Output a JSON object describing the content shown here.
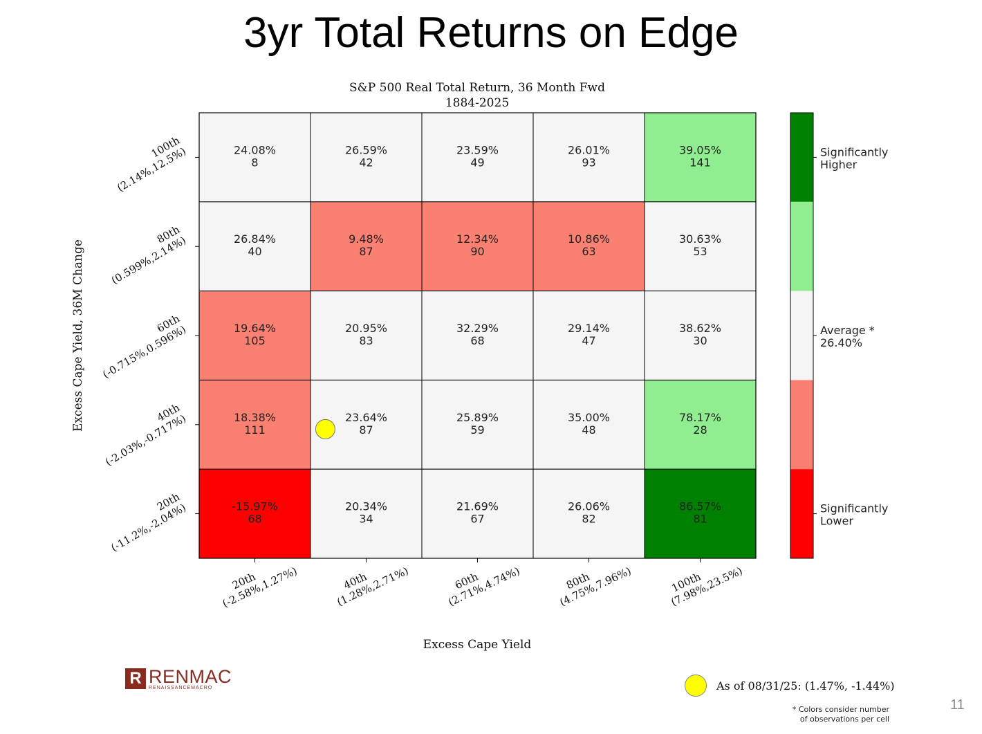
{
  "slide": {
    "title": "3yr Total Returns on Edge",
    "page_number": "11"
  },
  "colors": {
    "significantly_higher": "#008000",
    "higher": "#90ee90",
    "average": "#f5f5f5",
    "lower": "#fa8072",
    "significantly_lower": "#ff0000",
    "current_marker": "#ffff00"
  },
  "chart_data": {
    "type": "heatmap",
    "title": "S&P 500 Real Total Return, 36 Month Fwd",
    "subtitle": "1884-2025",
    "xlabel": "Excess Cape Yield",
    "ylabel": "Excess Cape Yield, 36M Change",
    "x_categories": [
      {
        "label": "20th",
        "range": "(-2.58%,1.27%)"
      },
      {
        "label": "40th",
        "range": "(1.28%,2.71%)"
      },
      {
        "label": "60th",
        "range": "(2.71%,4.74%)"
      },
      {
        "label": "80th",
        "range": "(4.75%,7.96%)"
      },
      {
        "label": "100th",
        "range": "(7.98%,23.5%)"
      }
    ],
    "y_categories": [
      {
        "label": "100th",
        "range": "(2.14%,12.5%)"
      },
      {
        "label": "80th",
        "range": "(0.599%,2.14%)"
      },
      {
        "label": "60th",
        "range": "(-0.715%,0.596%)"
      },
      {
        "label": "40th",
        "range": "(-2.03%,-0.717%)"
      },
      {
        "label": "20th",
        "range": "(-11.2%,-2.04%)"
      }
    ],
    "cells": [
      [
        {
          "value": "24.08%",
          "count": "8",
          "level": "average"
        },
        {
          "value": "26.59%",
          "count": "42",
          "level": "average"
        },
        {
          "value": "23.59%",
          "count": "49",
          "level": "average"
        },
        {
          "value": "26.01%",
          "count": "93",
          "level": "average"
        },
        {
          "value": "39.05%",
          "count": "141",
          "level": "higher"
        }
      ],
      [
        {
          "value": "26.84%",
          "count": "40",
          "level": "average"
        },
        {
          "value": "9.48%",
          "count": "87",
          "level": "lower"
        },
        {
          "value": "12.34%",
          "count": "90",
          "level": "lower"
        },
        {
          "value": "10.86%",
          "count": "63",
          "level": "lower"
        },
        {
          "value": "30.63%",
          "count": "53",
          "level": "average"
        }
      ],
      [
        {
          "value": "19.64%",
          "count": "105",
          "level": "lower"
        },
        {
          "value": "20.95%",
          "count": "83",
          "level": "average"
        },
        {
          "value": "32.29%",
          "count": "68",
          "level": "average"
        },
        {
          "value": "29.14%",
          "count": "47",
          "level": "average"
        },
        {
          "value": "38.62%",
          "count": "30",
          "level": "average"
        }
      ],
      [
        {
          "value": "18.38%",
          "count": "111",
          "level": "lower"
        },
        {
          "value": "23.64%",
          "count": "87",
          "level": "average"
        },
        {
          "value": "25.89%",
          "count": "59",
          "level": "average"
        },
        {
          "value": "35.00%",
          "count": "48",
          "level": "average"
        },
        {
          "value": "78.17%",
          "count": "28",
          "level": "higher"
        }
      ],
      [
        {
          "value": "-15.97%",
          "count": "68",
          "level": "significantly_lower"
        },
        {
          "value": "20.34%",
          "count": "34",
          "level": "average"
        },
        {
          "value": "21.69%",
          "count": "67",
          "level": "average"
        },
        {
          "value": "26.06%",
          "count": "82",
          "level": "average"
        },
        {
          "value": "86.57%",
          "count": "81",
          "level": "significantly_higher"
        }
      ]
    ],
    "legend": {
      "levels": [
        "significantly_higher",
        "higher",
        "average",
        "lower",
        "significantly_lower"
      ],
      "higher_label": [
        "Significantly",
        "Higher"
      ],
      "average_label": [
        "Average *",
        "26.40%"
      ],
      "lower_label": [
        "Significantly",
        "Lower"
      ]
    },
    "current_point": {
      "x": 1.47,
      "y": -1.44,
      "text": "As of 08/31/25:  (1.47%, -1.44%)"
    }
  },
  "footnote": [
    "* Colors consider number",
    "of observations per cell"
  ],
  "logo": {
    "mark": "R",
    "name": "RENMAC",
    "tagline": "RENAISSANCEMACRO"
  }
}
